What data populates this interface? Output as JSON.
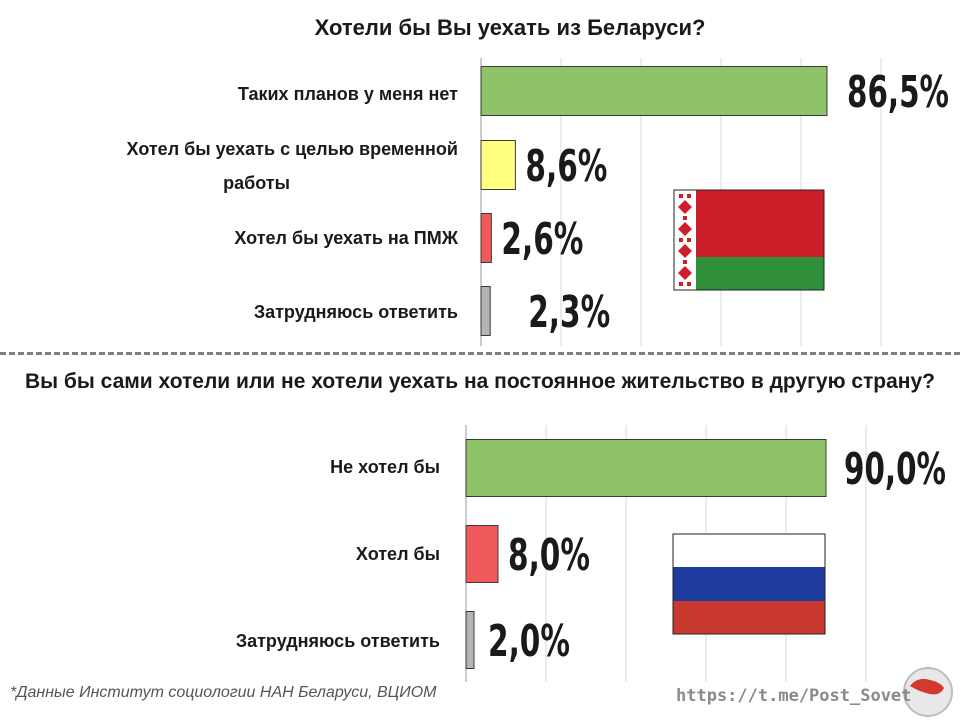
{
  "chart_data": [
    {
      "type": "bar",
      "orientation": "horizontal",
      "title": "Хотели бы Вы уехать из Беларуси?",
      "categories": [
        "Таких планов у меня нет",
        "Хотел бы уехать с целью временной работы",
        "Хотел бы уехать на ПМЖ",
        "Затрудняюсь ответить"
      ],
      "values": [
        86.5,
        8.6,
        2.6,
        2.3
      ],
      "value_labels": [
        "86,5%",
        "8,6%",
        "2,6%",
        "2,3%"
      ],
      "colors": [
        "#8ec36a",
        "#ffff80",
        "#f05a5a",
        "#b4b4b4"
      ],
      "xlim": [
        0,
        100
      ],
      "grid": true,
      "flag": "belarus-flag"
    },
    {
      "type": "bar",
      "orientation": "horizontal",
      "title": "Вы бы сами хотели или не хотели уехать на постоянное жительство в другую страну?",
      "categories": [
        "Не хотел бы",
        "Хотел бы",
        "Затрудняюсь ответить"
      ],
      "values": [
        90.0,
        8.0,
        2.0
      ],
      "value_labels": [
        "90,0%",
        "8,0%",
        "2,0%"
      ],
      "colors": [
        "#8ec36a",
        "#f05a5a",
        "#b4b4b4"
      ],
      "xlim": [
        0,
        100
      ],
      "grid": true,
      "flag": "russia-flag"
    }
  ],
  "labels": {
    "cat1_line1": "Хотел бы уехать с целью временной",
    "cat1_line2": "работы"
  },
  "footer": {
    "source": "*Данные Институт социологии НАН Беларуси, ВЦИОМ",
    "watermark": "https://t.me/Post_Sovet"
  }
}
